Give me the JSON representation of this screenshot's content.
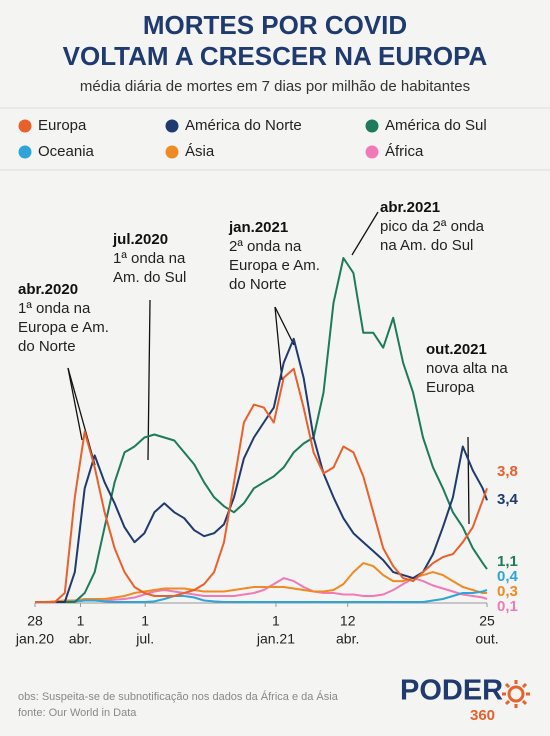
{
  "chart_data": {
    "type": "line",
    "title": [
      "MORTES POR COVID",
      "VOLTAM A CRESCER NA EUROPA"
    ],
    "subtitle": "média diária de mortes em 7 dias por milhão de habitantes",
    "x": [
      "2020-01-28",
      "2020-02-11",
      "2020-02-25",
      "2020-03-10",
      "2020-03-24",
      "2020-04-07",
      "2020-04-21",
      "2020-05-05",
      "2020-05-19",
      "2020-06-02",
      "2020-06-16",
      "2020-06-30",
      "2020-07-14",
      "2020-07-28",
      "2020-08-11",
      "2020-08-25",
      "2020-09-08",
      "2020-09-22",
      "2020-10-06",
      "2020-10-20",
      "2020-11-03",
      "2020-11-17",
      "2020-12-01",
      "2020-12-15",
      "2020-12-29",
      "2021-01-12",
      "2021-01-26",
      "2021-02-09",
      "2021-02-23",
      "2021-03-09",
      "2021-03-23",
      "2021-04-06",
      "2021-04-20",
      "2021-05-04",
      "2021-05-18",
      "2021-06-01",
      "2021-06-15",
      "2021-06-29",
      "2021-07-13",
      "2021-07-27",
      "2021-08-10",
      "2021-08-24",
      "2021-09-07",
      "2021-09-21",
      "2021-10-05",
      "2021-10-19",
      "2021-10-25"
    ],
    "xticks": [
      {
        "value": "2020-01-28",
        "label": [
          "28",
          "jan.20"
        ]
      },
      {
        "value": "2020-04-01",
        "label": [
          "1",
          "abr."
        ]
      },
      {
        "value": "2020-07-01",
        "label": [
          "1",
          "jul."
        ]
      },
      {
        "value": "2021-01-01",
        "label": [
          "1",
          "jan.21"
        ]
      },
      {
        "value": "2021-04-12",
        "label": [
          "12",
          "abr."
        ]
      },
      {
        "value": "2021-10-25",
        "label": [
          "25",
          "out."
        ]
      }
    ],
    "series": [
      {
        "name": "Europa",
        "color": "#e8602c",
        "values": [
          0,
          0,
          0,
          0.3,
          3.5,
          5.7,
          4.5,
          3.0,
          1.8,
          1.0,
          0.5,
          0.3,
          0.2,
          0.2,
          0.2,
          0.3,
          0.4,
          0.6,
          1.0,
          2.0,
          4.0,
          6.0,
          6.6,
          6.5,
          6.0,
          7.5,
          7.8,
          6.5,
          5.0,
          4.3,
          4.5,
          5.2,
          5.0,
          4.2,
          3.0,
          1.8,
          1.2,
          0.8,
          0.7,
          1.0,
          1.3,
          1.5,
          1.6,
          2.0,
          2.5,
          3.4,
          3.8
        ],
        "value_labels": [
          null,
          null,
          null,
          null,
          null,
          null,
          null,
          null,
          null,
          null,
          null,
          null,
          null,
          null,
          null,
          null,
          null,
          null,
          null,
          null,
          null,
          null,
          null,
          null,
          null,
          null,
          null,
          null,
          null,
          null,
          null,
          null,
          null,
          null,
          null,
          null,
          null,
          null,
          null,
          null,
          null,
          null,
          null,
          null,
          null,
          null,
          "3,8"
        ]
      },
      {
        "name": "América do Norte",
        "color": "#1f3a6e",
        "values": [
          0,
          0,
          0,
          0,
          1.0,
          3.8,
          4.9,
          4.0,
          3.3,
          2.5,
          2.0,
          2.3,
          3.0,
          3.3,
          3.0,
          2.8,
          2.4,
          2.2,
          2.3,
          2.6,
          3.5,
          4.8,
          5.5,
          6.0,
          6.5,
          8.0,
          8.8,
          7.5,
          5.5,
          4.3,
          3.5,
          2.8,
          2.3,
          2.0,
          1.7,
          1.4,
          1.0,
          0.9,
          0.8,
          1.0,
          1.6,
          2.5,
          3.5,
          5.2,
          4.4,
          3.8,
          3.4
        ],
        "value_labels": [
          null,
          null,
          null,
          null,
          null,
          null,
          null,
          null,
          null,
          null,
          null,
          null,
          null,
          null,
          null,
          null,
          null,
          null,
          null,
          null,
          null,
          null,
          null,
          null,
          null,
          null,
          null,
          null,
          null,
          null,
          null,
          null,
          null,
          null,
          null,
          null,
          null,
          null,
          null,
          null,
          null,
          null,
          null,
          null,
          null,
          null,
          "3,4"
        ]
      },
      {
        "name": "América do Sul",
        "color": "#1d7a5c",
        "values": [
          0,
          0,
          0,
          0,
          0,
          0.3,
          1.0,
          2.5,
          4.0,
          5.0,
          5.2,
          5.5,
          5.6,
          5.5,
          5.4,
          5.0,
          4.6,
          4.0,
          3.5,
          3.2,
          3.0,
          3.3,
          3.8,
          4.0,
          4.2,
          4.5,
          5.0,
          5.3,
          5.5,
          7.0,
          10.0,
          11.5,
          11.0,
          9.0,
          9.0,
          8.5,
          9.5,
          8.0,
          7.0,
          5.5,
          4.5,
          3.8,
          3.0,
          2.5,
          1.8,
          1.3,
          1.1
        ],
        "value_labels": [
          null,
          null,
          null,
          null,
          null,
          null,
          null,
          null,
          null,
          null,
          null,
          null,
          null,
          null,
          null,
          null,
          null,
          null,
          null,
          null,
          null,
          null,
          null,
          null,
          null,
          null,
          null,
          null,
          null,
          null,
          null,
          null,
          null,
          null,
          null,
          null,
          null,
          null,
          null,
          null,
          null,
          null,
          null,
          null,
          null,
          null,
          "1,1"
        ]
      },
      {
        "name": "Oceania",
        "color": "#2fa4d9",
        "values": [
          0,
          0,
          0,
          0,
          0.02,
          0.05,
          0.05,
          0.02,
          0,
          0,
          0,
          0,
          0.02,
          0.1,
          0.2,
          0.2,
          0.15,
          0.05,
          0.02,
          0,
          0,
          0,
          0,
          0,
          0,
          0,
          0,
          0,
          0,
          0,
          0,
          0,
          0,
          0,
          0,
          0,
          0,
          0,
          0,
          0,
          0.05,
          0.1,
          0.2,
          0.3,
          0.3,
          0.35,
          0.4
        ],
        "value_labels": [
          null,
          null,
          null,
          null,
          null,
          null,
          null,
          null,
          null,
          null,
          null,
          null,
          null,
          null,
          null,
          null,
          null,
          null,
          null,
          null,
          null,
          null,
          null,
          null,
          null,
          null,
          null,
          null,
          null,
          null,
          null,
          null,
          null,
          null,
          null,
          null,
          null,
          null,
          null,
          null,
          null,
          null,
          null,
          null,
          null,
          null,
          "0,4"
        ]
      },
      {
        "name": "Ásia",
        "color": "#f08a24",
        "values": [
          0,
          0,
          0.02,
          0.05,
          0.05,
          0.1,
          0.1,
          0.1,
          0.15,
          0.2,
          0.3,
          0.35,
          0.4,
          0.45,
          0.45,
          0.45,
          0.4,
          0.35,
          0.35,
          0.35,
          0.4,
          0.45,
          0.5,
          0.5,
          0.5,
          0.5,
          0.45,
          0.4,
          0.35,
          0.35,
          0.4,
          0.6,
          1.0,
          1.3,
          1.2,
          0.9,
          0.7,
          0.7,
          0.8,
          0.9,
          1.0,
          0.9,
          0.7,
          0.5,
          0.4,
          0.3,
          0.3
        ],
        "value_labels": [
          null,
          null,
          null,
          null,
          null,
          null,
          null,
          null,
          null,
          null,
          null,
          null,
          null,
          null,
          null,
          null,
          null,
          null,
          null,
          null,
          null,
          null,
          null,
          null,
          null,
          null,
          null,
          null,
          null,
          null,
          null,
          null,
          null,
          null,
          null,
          null,
          null,
          null,
          null,
          null,
          null,
          null,
          null,
          null,
          null,
          null,
          "0,3"
        ]
      },
      {
        "name": "África",
        "color": "#f07ab8",
        "values": [
          0,
          0,
          0,
          0,
          0.02,
          0.05,
          0.05,
          0.05,
          0.08,
          0.1,
          0.15,
          0.25,
          0.35,
          0.4,
          0.35,
          0.3,
          0.25,
          0.2,
          0.2,
          0.2,
          0.2,
          0.25,
          0.3,
          0.4,
          0.6,
          0.8,
          0.7,
          0.5,
          0.35,
          0.3,
          0.3,
          0.25,
          0.25,
          0.2,
          0.2,
          0.25,
          0.4,
          0.6,
          0.8,
          0.7,
          0.55,
          0.45,
          0.35,
          0.25,
          0.2,
          0.15,
          0.1
        ],
        "value_labels": [
          null,
          null,
          null,
          null,
          null,
          null,
          null,
          null,
          null,
          null,
          null,
          null,
          null,
          null,
          null,
          null,
          null,
          null,
          null,
          null,
          null,
          null,
          null,
          null,
          null,
          null,
          null,
          null,
          null,
          null,
          null,
          null,
          null,
          null,
          null,
          null,
          null,
          null,
          null,
          null,
          null,
          null,
          null,
          null,
          null,
          null,
          "0,1"
        ]
      }
    ],
    "annotations": [
      {
        "title": "abr.2020",
        "lines": [
          "1ª onda na",
          "Europa e Am.",
          "do Norte"
        ]
      },
      {
        "title": "jul.2020",
        "lines": [
          "1ª onda na",
          "Am. do Sul"
        ]
      },
      {
        "title": "jan.2021",
        "lines": [
          "2ª onda na",
          "Europa e Am.",
          "do Norte"
        ]
      },
      {
        "title": "abr.2021",
        "lines": [
          "pico da 2ª onda",
          "na Am. do Sul"
        ]
      },
      {
        "title": "out.2021",
        "lines": [
          "nova alta na",
          "Europa"
        ]
      }
    ],
    "note": "obs: Suspeita-se de subnotificação nos dados da África e da Ásia",
    "source": "fonte: Our World in Data",
    "brand": [
      "PODER",
      "360"
    ]
  }
}
